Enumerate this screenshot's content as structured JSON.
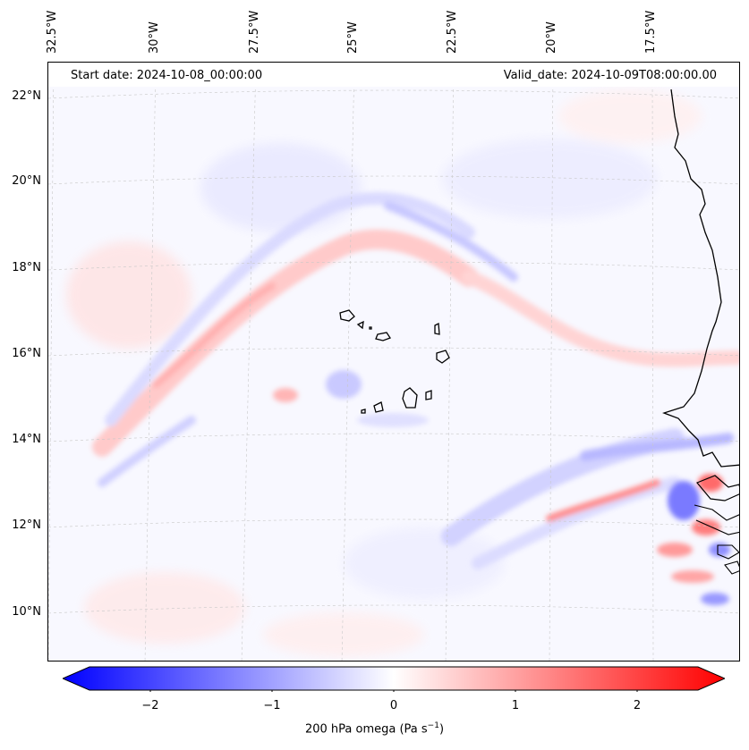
{
  "header": {
    "start_date": "Start date: 2024-10-08_00:00:00",
    "valid_date": "Valid_date: 2024-10-09T08:00:00.00"
  },
  "axes": {
    "longitude_labels": [
      "32.5°W",
      "30°W",
      "27.5°W",
      "25°W",
      "22.5°W",
      "20°W",
      "17.5°W"
    ],
    "latitude_labels": [
      "22°N",
      "20°N",
      "18°N",
      "16°N",
      "14°N",
      "12°N",
      "10°N"
    ]
  },
  "colorbar": {
    "ticks": [
      "−2",
      "−1",
      "0",
      "1",
      "2"
    ],
    "tick_values": [
      -2,
      -1,
      0,
      1,
      2
    ],
    "range": [
      -2.5,
      2.5
    ],
    "title": "200 hPa omega (Pa s",
    "title_superscript": "−1",
    "title_suffix": ")",
    "colors": {
      "negative": "#0000ff",
      "zero": "#ffffff",
      "positive": "#ff0000"
    }
  },
  "map": {
    "gridlines": true,
    "coastline_color": "#000000"
  }
}
